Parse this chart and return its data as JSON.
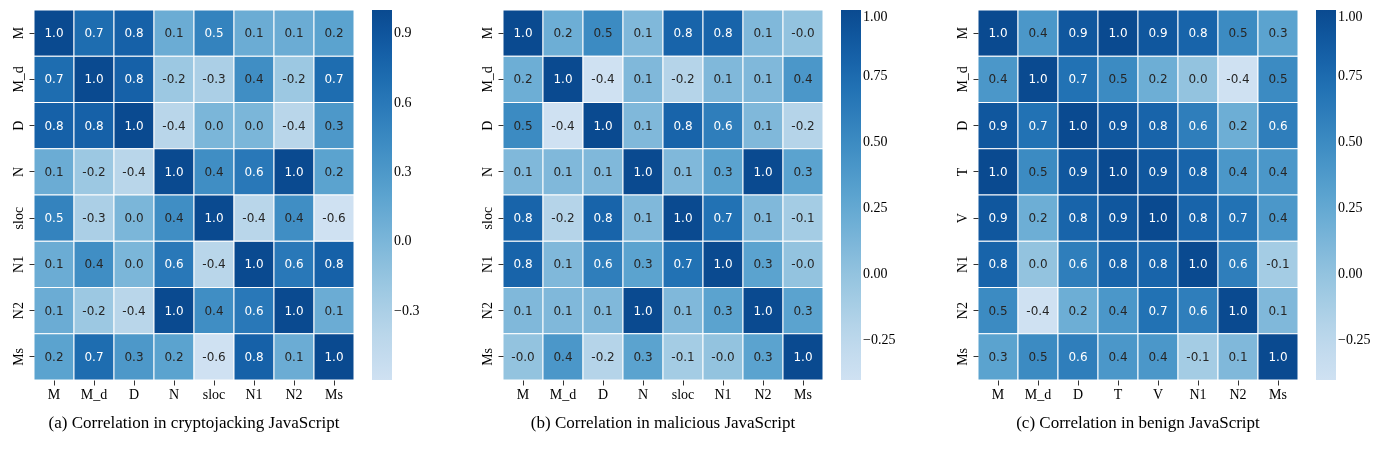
{
  "chart_data": [
    {
      "type": "heatmap",
      "title": "(a) Correlation in cryptojacking JavaScript",
      "categories": [
        "M",
        "M_d",
        "D",
        "N",
        "sloc",
        "N1",
        "N2",
        "Ms"
      ],
      "y_categories": [
        "M",
        "M_d",
        "D",
        "N",
        "sloc",
        "N1",
        "N2",
        "Ms"
      ],
      "cells": [
        [
          1.0,
          0.7,
          0.8,
          0.1,
          0.5,
          0.1,
          0.1,
          0.2
        ],
        [
          0.7,
          1.0,
          0.8,
          -0.2,
          -0.3,
          0.4,
          -0.2,
          0.7
        ],
        [
          0.8,
          0.8,
          1.0,
          -0.4,
          0.0,
          0.0,
          -0.4,
          0.3
        ],
        [
          0.1,
          -0.2,
          -0.4,
          1.0,
          0.4,
          0.6,
          1.0,
          0.2
        ],
        [
          0.5,
          -0.3,
          0.0,
          0.4,
          1.0,
          -0.4,
          0.4,
          -0.6
        ],
        [
          0.1,
          0.4,
          0.0,
          0.6,
          -0.4,
          1.0,
          0.6,
          0.8
        ],
        [
          0.1,
          -0.2,
          -0.4,
          1.0,
          0.4,
          0.6,
          1.0,
          0.1
        ],
        [
          0.2,
          0.7,
          0.3,
          0.2,
          -0.6,
          0.8,
          0.1,
          1.0
        ]
      ],
      "cell_labels": [
        [
          "1.0",
          "0.7",
          "0.8",
          "0.1",
          "0.5",
          "0.1",
          "0.1",
          "0.2"
        ],
        [
          "0.7",
          "1.0",
          "0.8",
          "-0.2",
          "-0.3",
          "0.4",
          "-0.2",
          "0.7"
        ],
        [
          "0.8",
          "0.8",
          "1.0",
          "-0.4",
          "0.0",
          "0.0",
          "-0.4",
          "0.3"
        ],
        [
          "0.1",
          "-0.2",
          "-0.4",
          "1.0",
          "0.4",
          "0.6",
          "1.0",
          "0.2"
        ],
        [
          "0.5",
          "-0.3",
          "0.0",
          "0.4",
          "1.0",
          "-0.4",
          "0.4",
          "-0.6"
        ],
        [
          "0.1",
          "0.4",
          "0.0",
          "0.6",
          "-0.4",
          "1.0",
          "0.6",
          "0.8"
        ],
        [
          "0.1",
          "-0.2",
          "-0.4",
          "1.0",
          "0.4",
          "0.6",
          "1.0",
          "0.1"
        ],
        [
          "0.2",
          "0.7",
          "0.3",
          "0.2",
          "-0.6",
          "0.8",
          "0.1",
          "1.0"
        ]
      ],
      "clim": [
        -0.6,
        1.0
      ],
      "cticks": [
        {
          "value": -0.3,
          "label": "−0.3"
        },
        {
          "value": 0,
          "label": "0.0"
        },
        0.3,
        0.6,
        0.9
      ]
    },
    {
      "type": "heatmap",
      "title": "(b) Correlation in malicious JavaScript",
      "categories": [
        "M",
        "M_d",
        "D",
        "N",
        "sloc",
        "N1",
        "N2",
        "Ms"
      ],
      "y_categories": [
        "M",
        "M_d",
        "D",
        "N",
        "sloc",
        "N1",
        "N2",
        "Ms"
      ],
      "cells": [
        [
          1.0,
          0.2,
          0.5,
          0.1,
          0.8,
          0.8,
          0.1,
          0.0
        ],
        [
          0.2,
          1.0,
          -0.4,
          0.1,
          -0.2,
          0.1,
          0.1,
          0.4
        ],
        [
          0.5,
          -0.4,
          1.0,
          0.1,
          0.8,
          0.6,
          0.1,
          -0.2
        ],
        [
          0.1,
          0.1,
          0.1,
          1.0,
          0.1,
          0.3,
          1.0,
          0.3
        ],
        [
          0.8,
          -0.2,
          0.8,
          0.1,
          1.0,
          0.7,
          0.1,
          -0.1
        ],
        [
          0.8,
          0.1,
          0.6,
          0.3,
          0.7,
          1.0,
          0.3,
          0.0
        ],
        [
          0.1,
          0.1,
          0.1,
          1.0,
          0.1,
          0.3,
          1.0,
          0.3
        ],
        [
          0.0,
          0.4,
          -0.2,
          0.3,
          -0.1,
          0.0,
          0.3,
          1.0
        ]
      ],
      "cell_labels": [
        [
          "1.0",
          "0.2",
          "0.5",
          "0.1",
          "0.8",
          "0.8",
          "0.1",
          "-0.0"
        ],
        [
          "0.2",
          "1.0",
          "-0.4",
          "0.1",
          "-0.2",
          "0.1",
          "0.1",
          "0.4"
        ],
        [
          "0.5",
          "-0.4",
          "1.0",
          "0.1",
          "0.8",
          "0.6",
          "0.1",
          "-0.2"
        ],
        [
          "0.1",
          "0.1",
          "0.1",
          "1.0",
          "0.1",
          "0.3",
          "1.0",
          "0.3"
        ],
        [
          "0.8",
          "-0.2",
          "0.8",
          "0.1",
          "1.0",
          "0.7",
          "0.1",
          "-0.1"
        ],
        [
          "0.8",
          "0.1",
          "0.6",
          "0.3",
          "0.7",
          "1.0",
          "0.3",
          "-0.0"
        ],
        [
          "0.1",
          "0.1",
          "0.1",
          "1.0",
          "0.1",
          "0.3",
          "1.0",
          "0.3"
        ],
        [
          "-0.0",
          "0.4",
          "-0.2",
          "0.3",
          "-0.1",
          "-0.0",
          "0.3",
          "1.0"
        ]
      ],
      "clim": [
        -0.4,
        1.0
      ],
      "cticks": [
        {
          "value": -0.25,
          "label": "−0.25"
        },
        {
          "value": 0,
          "label": "0.00"
        },
        {
          "value": 0.25,
          "label": "0.25"
        },
        {
          "value": 0.5,
          "label": "0.50"
        },
        {
          "value": 0.75,
          "label": "0.75"
        },
        {
          "value": 1,
          "label": "1.00"
        }
      ]
    },
    {
      "type": "heatmap",
      "title": "(c) Correlation in benign JavaScript",
      "categories": [
        "M",
        "M_d",
        "D",
        "T",
        "V",
        "N1",
        "N2",
        "Ms"
      ],
      "y_categories": [
        "M",
        "M_d",
        "D",
        "T",
        "V",
        "N1",
        "N2",
        "Ms"
      ],
      "cells": [
        [
          1.0,
          0.4,
          0.9,
          1.0,
          0.9,
          0.8,
          0.5,
          0.3
        ],
        [
          0.4,
          1.0,
          0.7,
          0.5,
          0.2,
          0.0,
          -0.4,
          0.5
        ],
        [
          0.9,
          0.7,
          1.0,
          0.9,
          0.8,
          0.6,
          0.2,
          0.6
        ],
        [
          1.0,
          0.5,
          0.9,
          1.0,
          0.9,
          0.8,
          0.4,
          0.4
        ],
        [
          0.9,
          0.2,
          0.8,
          0.9,
          1.0,
          0.8,
          0.7,
          0.4
        ],
        [
          0.8,
          0.0,
          0.6,
          0.8,
          0.8,
          1.0,
          0.6,
          -0.1
        ],
        [
          0.5,
          -0.4,
          0.2,
          0.4,
          0.7,
          0.6,
          1.0,
          0.1
        ],
        [
          0.3,
          0.5,
          0.6,
          0.4,
          0.4,
          -0.1,
          0.1,
          1.0
        ]
      ],
      "cell_labels": [
        [
          "1.0",
          "0.4",
          "0.9",
          "1.0",
          "0.9",
          "0.8",
          "0.5",
          "0.3"
        ],
        [
          "0.4",
          "1.0",
          "0.7",
          "0.5",
          "0.2",
          "0.0",
          "-0.4",
          "0.5"
        ],
        [
          "0.9",
          "0.7",
          "1.0",
          "0.9",
          "0.8",
          "0.6",
          "0.2",
          "0.6"
        ],
        [
          "1.0",
          "0.5",
          "0.9",
          "1.0",
          "0.9",
          "0.8",
          "0.4",
          "0.4"
        ],
        [
          "0.9",
          "0.2",
          "0.8",
          "0.9",
          "1.0",
          "0.8",
          "0.7",
          "0.4"
        ],
        [
          "0.8",
          "0.0",
          "0.6",
          "0.8",
          "0.8",
          "1.0",
          "0.6",
          "-0.1"
        ],
        [
          "0.5",
          "-0.4",
          "0.2",
          "0.4",
          "0.7",
          "0.6",
          "1.0",
          "0.1"
        ],
        [
          "0.3",
          "0.5",
          "0.6",
          "0.4",
          "0.4",
          "-0.1",
          "0.1",
          "1.0"
        ]
      ],
      "clim": [
        -0.4,
        1.0
      ],
      "cticks": [
        {
          "value": -0.25,
          "label": "−0.25"
        },
        {
          "value": 0,
          "label": "0.00"
        },
        {
          "value": 0.25,
          "label": "0.25"
        },
        {
          "value": 0.5,
          "label": "0.50"
        },
        {
          "value": 0.75,
          "label": "0.75"
        },
        {
          "value": 1,
          "label": "1.00"
        }
      ]
    }
  ]
}
